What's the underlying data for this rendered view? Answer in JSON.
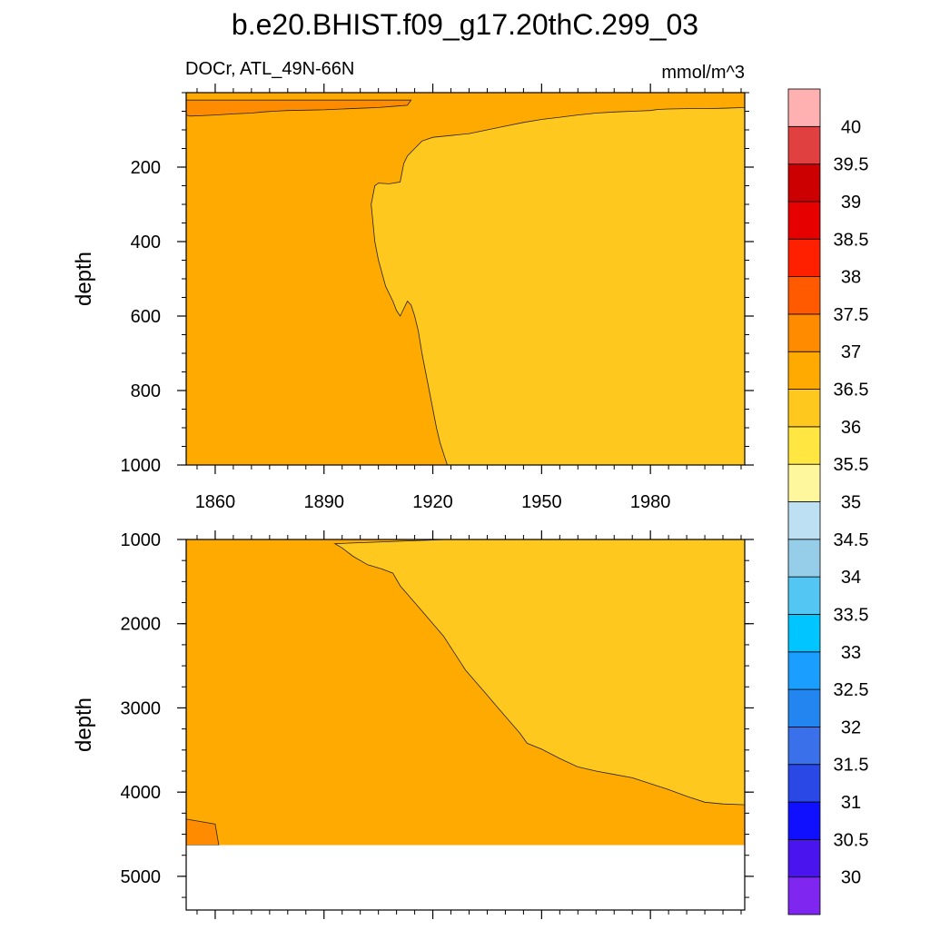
{
  "chart_data": {
    "type": "contour",
    "title": "b.e20.BHIST.f09_g17.20thC.299_03",
    "left_string": "DOCr, ATL_49N-66N",
    "right_string": "mmol/m^3",
    "xlabel": "",
    "xticks": [
      1860,
      1890,
      1920,
      1950,
      1980
    ],
    "xlim": [
      1852,
      2006
    ],
    "panels": [
      {
        "name": "upper",
        "ylabel": "depth",
        "ylim": [
          0,
          1000
        ],
        "yticks": [
          200,
          400,
          600,
          800,
          1000
        ],
        "regions": [
          {
            "level_range": "36.5-37",
            "color": "#FFAA00",
            "shape": "background"
          },
          {
            "level_range": "37-37.5",
            "color": "#FF8C00",
            "boundary": [
              [
                1852,
                20
              ],
              [
                1852,
                60
              ],
              [
                1853,
                63
              ],
              [
                1856,
                62
              ],
              [
                1860,
                60
              ],
              [
                1865,
                57
              ],
              [
                1870,
                55
              ],
              [
                1873,
                52
              ],
              [
                1876,
                50
              ],
              [
                1880,
                48
              ],
              [
                1885,
                47
              ],
              [
                1890,
                46
              ],
              [
                1895,
                44
              ],
              [
                1900,
                42
              ],
              [
                1905,
                40
              ],
              [
                1910,
                36
              ],
              [
                1913,
                34
              ],
              [
                1914,
                20
              ]
            ]
          },
          {
            "level_range": "36-36.5",
            "color": "#FFC81E",
            "boundary": [
              [
                2006,
                20
              ],
              [
                2006,
                40
              ],
              [
                2000,
                42
              ],
              [
                1995,
                43
              ],
              [
                1990,
                43
              ],
              [
                1985,
                44
              ],
              [
                1982,
                45
              ],
              [
                1980,
                48
              ],
              [
                1975,
                50
              ],
              [
                1970,
                52
              ],
              [
                1965,
                55
              ],
              [
                1960,
                60
              ],
              [
                1955,
                66
              ],
              [
                1950,
                72
              ],
              [
                1945,
                80
              ],
              [
                1940,
                90
              ],
              [
                1935,
                100
              ],
              [
                1930,
                110
              ],
              [
                1925,
                115
              ],
              [
                1920,
                120
              ],
              [
                1917,
                130
              ],
              [
                1915,
                150
              ],
              [
                1913,
                170
              ],
              [
                1912,
                190
              ],
              [
                1911,
                240
              ],
              [
                1908,
                245
              ],
              [
                1905,
                243
              ],
              [
                1904,
                250
              ],
              [
                1903,
                300
              ],
              [
                1904,
                400
              ],
              [
                1905,
                450
              ],
              [
                1907,
                520
              ],
              [
                1909,
                560
              ],
              [
                1910,
                585
              ],
              [
                1911,
                600
              ],
              [
                1913,
                560
              ],
              [
                1914,
                570
              ],
              [
                1915,
                600
              ],
              [
                1916,
                640
              ],
              [
                1917,
                700
              ],
              [
                1918,
                750
              ],
              [
                1919,
                800
              ],
              [
                1920,
                850
              ],
              [
                1921,
                900
              ],
              [
                1922,
                940
              ],
              [
                1923,
                970
              ],
              [
                1924,
                1000
              ],
              [
                2006,
                1000
              ]
            ]
          }
        ]
      },
      {
        "name": "lower",
        "ylabel": "depth",
        "ylim": [
          1000,
          5400
        ],
        "yticks": [
          1000,
          2000,
          3000,
          4000,
          5000
        ],
        "data_bottom": 4630,
        "regions": [
          {
            "level_range": "36.5-37",
            "color": "#FFAA00",
            "shape": "background"
          },
          {
            "level_range": "37-37.5",
            "color": "#FF8C00",
            "boundary": [
              [
                1852,
                4630
              ],
              [
                1852,
                4320
              ],
              [
                1860,
                4380
              ],
              [
                1861,
                4630
              ]
            ]
          },
          {
            "level_range": "36-36.5",
            "color": "#FFC81E",
            "boundary": [
              [
                1924,
                1000
              ],
              [
                2006,
                1000
              ],
              [
                2006,
                4150
              ],
              [
                2000,
                4140
              ],
              [
                1995,
                4120
              ],
              [
                1990,
                4050
              ],
              [
                1985,
                3970
              ],
              [
                1980,
                3900
              ],
              [
                1975,
                3830
              ],
              [
                1970,
                3790
              ],
              [
                1965,
                3750
              ],
              [
                1960,
                3700
              ],
              [
                1955,
                3600
              ],
              [
                1950,
                3490
              ],
              [
                1946,
                3420
              ],
              [
                1944,
                3300
              ],
              [
                1941,
                3150
              ],
              [
                1938,
                3000
              ],
              [
                1935,
                2850
              ],
              [
                1932,
                2700
              ],
              [
                1929,
                2550
              ],
              [
                1926,
                2350
              ],
              [
                1923,
                2150
              ],
              [
                1920,
                2000
              ],
              [
                1917,
                1850
              ],
              [
                1914,
                1700
              ],
              [
                1911,
                1550
              ],
              [
                1909,
                1400
              ],
              [
                1906,
                1350
              ],
              [
                1902,
                1300
              ],
              [
                1898,
                1200
              ],
              [
                1895,
                1100
              ],
              [
                1893,
                1050
              ],
              [
                1924,
                1000
              ]
            ]
          }
        ]
      }
    ],
    "colorbar": {
      "colors": [
        "#7F27F0",
        "#4A14EE",
        "#1010FF",
        "#2A48E5",
        "#3A70EA",
        "#2386F0",
        "#1A9EFF",
        "#00C5FF",
        "#54C6F4",
        "#96CEEA",
        "#BDE0F2",
        "#FFF79E",
        "#FFE641",
        "#FFC81E",
        "#FFAA00",
        "#FF8C00",
        "#FF5A00",
        "#FF2000",
        "#E60000",
        "#CC0000",
        "#E04040",
        "#FFB0B0"
      ],
      "labels": [
        "30",
        "30.5",
        "31",
        "31.5",
        "32",
        "32.5",
        "33",
        "33.5",
        "34",
        "34.5",
        "35",
        "35.5",
        "36",
        "36.5",
        "37",
        "37.5",
        "38",
        "38.5",
        "39",
        "39.5",
        "40"
      ]
    }
  }
}
